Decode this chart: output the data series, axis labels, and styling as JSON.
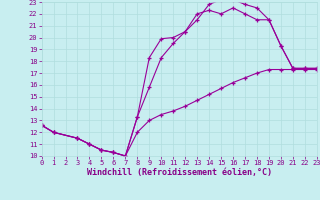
{
  "xlabel": "Windchill (Refroidissement éolien,°C)",
  "bg_color": "#c8eef0",
  "line_color": "#990099",
  "xlim": [
    0,
    23
  ],
  "ylim": [
    10,
    23
  ],
  "xticks": [
    0,
    1,
    2,
    3,
    4,
    5,
    6,
    7,
    8,
    9,
    10,
    11,
    12,
    13,
    14,
    15,
    16,
    17,
    18,
    19,
    20,
    21,
    22,
    23
  ],
  "yticks": [
    10,
    11,
    12,
    13,
    14,
    15,
    16,
    17,
    18,
    19,
    20,
    21,
    22,
    23
  ],
  "grid_color": "#b0dede",
  "curve1_x": [
    0,
    1,
    3,
    4,
    5,
    6,
    7,
    8,
    9,
    10,
    11,
    12,
    13,
    14,
    15,
    16,
    17,
    18,
    19,
    20,
    21,
    22,
    23
  ],
  "curve1_y": [
    12.6,
    12.0,
    11.5,
    11.0,
    10.5,
    10.3,
    10.0,
    13.3,
    18.3,
    19.9,
    20.0,
    20.5,
    21.5,
    22.8,
    23.2,
    23.2,
    22.8,
    22.5,
    21.5,
    19.3,
    17.4,
    17.4,
    17.4
  ],
  "curve2_x": [
    0,
    1,
    3,
    4,
    5,
    6,
    7,
    8,
    9,
    10,
    11,
    12,
    13,
    14,
    15,
    16,
    17,
    18,
    19,
    20,
    21,
    22,
    23
  ],
  "curve2_y": [
    12.6,
    12.0,
    11.5,
    11.0,
    10.5,
    10.3,
    10.0,
    13.3,
    15.8,
    18.3,
    19.5,
    20.5,
    22.0,
    22.3,
    22.0,
    22.5,
    22.0,
    21.5,
    21.5,
    19.3,
    17.4,
    17.4,
    17.4
  ],
  "curve3_x": [
    0,
    1,
    3,
    4,
    5,
    6,
    7,
    8,
    9,
    10,
    11,
    12,
    13,
    14,
    15,
    16,
    17,
    18,
    19,
    20,
    21,
    22,
    23
  ],
  "curve3_y": [
    12.6,
    12.0,
    11.5,
    11.0,
    10.5,
    10.3,
    10.0,
    12.0,
    13.0,
    13.5,
    13.8,
    14.2,
    14.7,
    15.2,
    15.7,
    16.2,
    16.6,
    17.0,
    17.3,
    17.3,
    17.3,
    17.3,
    17.3
  ],
  "tick_color": "#880088",
  "label_color": "#880088",
  "tick_fontsize": 5.0,
  "xlabel_fontsize": 6.0
}
